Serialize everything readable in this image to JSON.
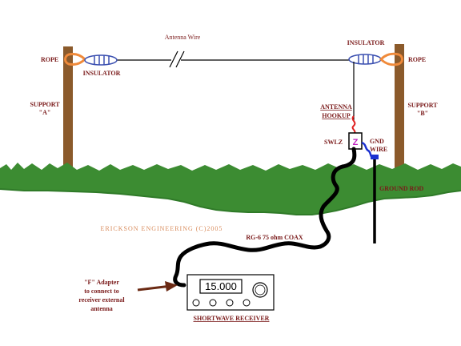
{
  "labels": {
    "antenna_wire": "Antenna Wire",
    "insulator_left": "INSULATOR",
    "insulator_right": "INSULATOR",
    "rope_left": "ROPE",
    "rope_right": "ROPE",
    "support_a_line1": "SUPPORT",
    "support_a_line2": "\"A\"",
    "support_b_line1": "SUPPORT",
    "support_b_line2": "\"B\"",
    "antenna_hookup_line1": "ANTENNA",
    "antenna_hookup_line2": "HOOKUP",
    "swlz": "SWLZ",
    "swlz_symbol": "Z",
    "gnd_line1": "GND",
    "gnd_line2": "WIRE",
    "ground_rod": "GROUND ROD",
    "copyright": "ERICKSON ENGINEERING (C)2005",
    "coax": "RG-6  75  ohm COAX",
    "f_adapter_line1": "\"F\" Adapter",
    "f_adapter_line2": "to connect to",
    "f_adapter_line3": "receiver external",
    "f_adapter_line4": "antenna",
    "receiver_display": "15.000",
    "receiver_label": "SHORTWAVE RECEIVER"
  },
  "colors": {
    "label_text": "#7a1a1a",
    "pole": "#8b5a2b",
    "grass": "#3c8c32",
    "grass_dark": "#2f7a28",
    "insulator": "#3a4fb0",
    "rope": "#f08a3a",
    "hookup_wire": "#e02020",
    "gnd_wire": "#1a30d0",
    "coax": "#000000",
    "copyright": "#d88a5a"
  }
}
